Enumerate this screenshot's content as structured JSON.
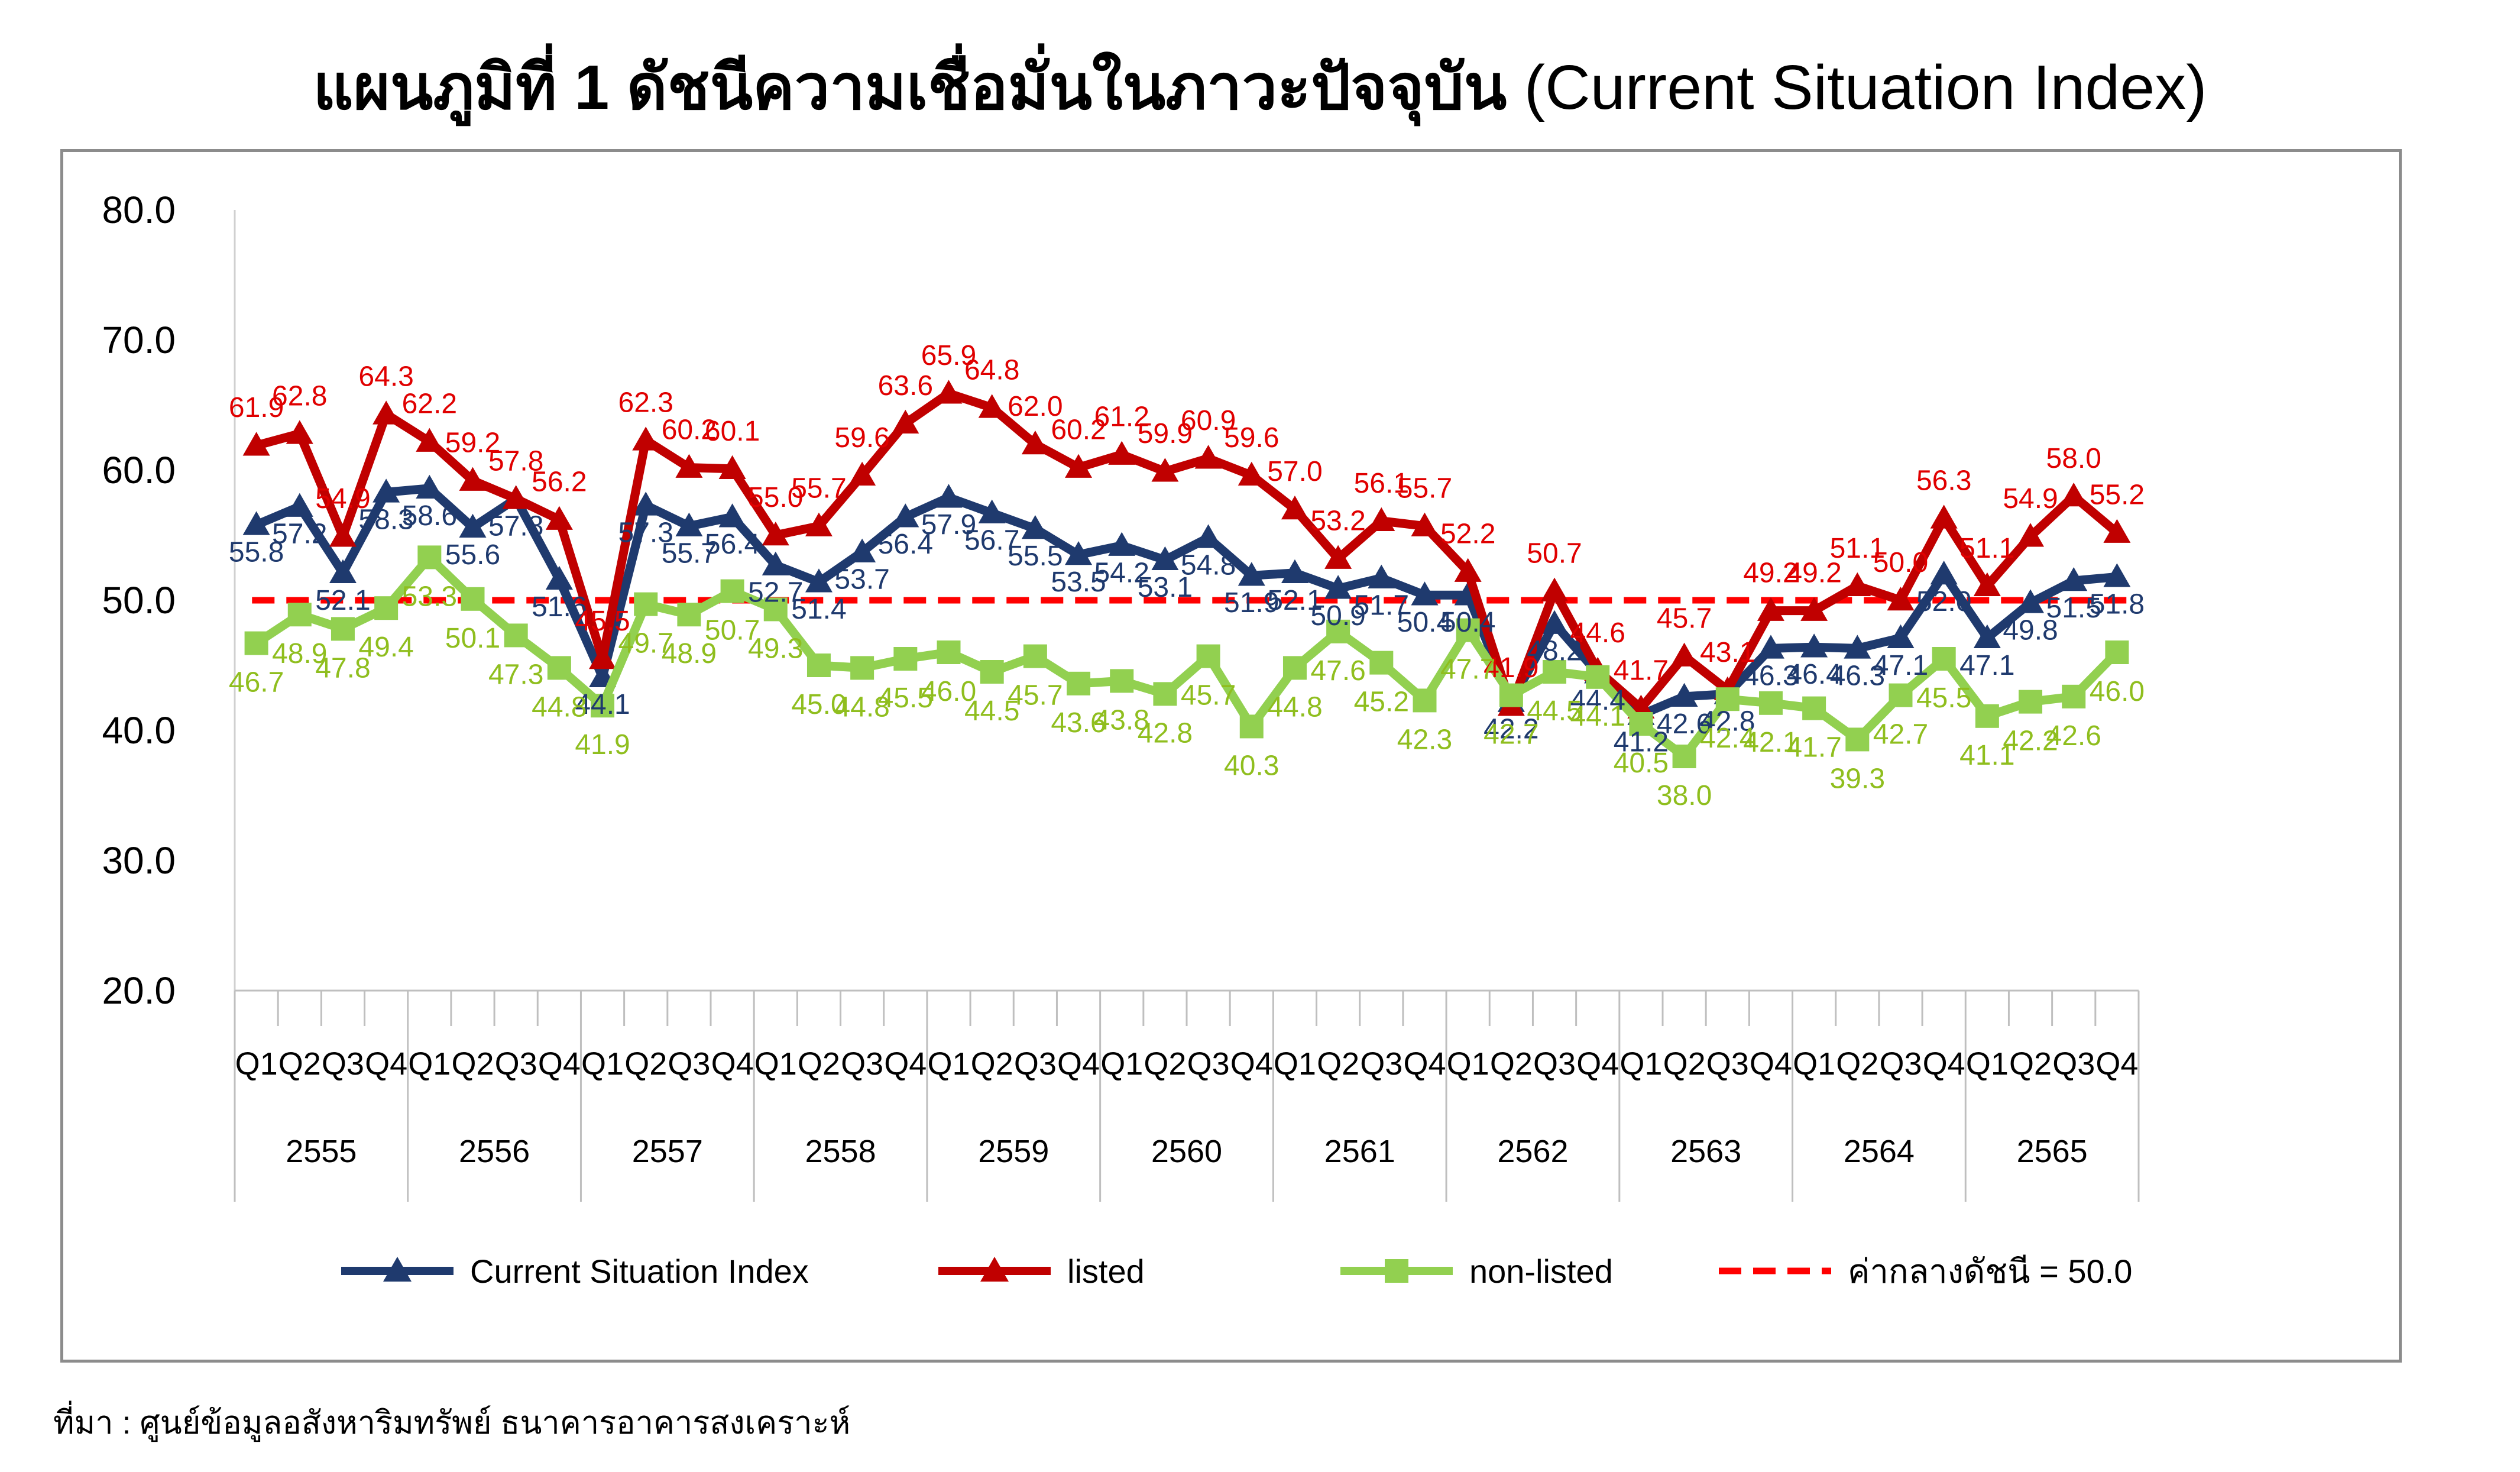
{
  "page": {
    "title_thai": "แผนภูมิที่ 1 ดัชนีความเชื่อมั่นในภาวะปัจจุบัน",
    "title_eng": "(Current Situation Index)",
    "source_note": "ที่มา : ศูนย์ข้อมูลอสังหาริมทรัพย์ ธนาคารอาคารสงเคราะห์"
  },
  "chart_data": {
    "type": "line",
    "ylim": [
      20,
      80
    ],
    "yticks": [
      "20.0",
      "30.0",
      "40.0",
      "50.0",
      "60.0",
      "70.0",
      "80.0"
    ],
    "quarters": [
      "Q1",
      "Q2",
      "Q3",
      "Q4",
      "Q1",
      "Q2",
      "Q3",
      "Q4",
      "Q1",
      "Q2",
      "Q3",
      "Q4",
      "Q1",
      "Q2",
      "Q3",
      "Q4",
      "Q1",
      "Q2",
      "Q3",
      "Q4",
      "Q1",
      "Q2",
      "Q3",
      "Q4",
      "Q1",
      "Q2",
      "Q3",
      "Q4",
      "Q1",
      "Q2",
      "Q3",
      "Q4",
      "Q1",
      "Q2",
      "Q3",
      "Q4",
      "Q1",
      "Q2",
      "Q3",
      "Q4",
      "Q1",
      "Q2",
      "Q3",
      "Q4"
    ],
    "years": [
      "2555",
      "2556",
      "2557",
      "2558",
      "2559",
      "2560",
      "2561",
      "2562",
      "2563",
      "2564",
      "2565"
    ],
    "series": [
      {
        "name": "Current Situation Index",
        "color": "#1f3a6e",
        "marker": "triangle",
        "label_color": "#1f3a6e",
        "values": [
          55.8,
          57.2,
          52.1,
          58.3,
          58.6,
          55.6,
          57.8,
          51.6,
          44.1,
          57.3,
          55.7,
          56.4,
          52.7,
          51.4,
          53.7,
          56.4,
          57.9,
          56.7,
          55.5,
          53.5,
          54.2,
          53.1,
          54.8,
          51.9,
          52.1,
          50.9,
          51.7,
          50.4,
          50.4,
          42.2,
          48.2,
          44.4,
          41.2,
          42.6,
          42.8,
          46.3,
          46.4,
          46.3,
          47.1,
          52.0,
          47.1,
          49.8,
          51.5,
          51.8
        ]
      },
      {
        "name": "listed",
        "color": "#c00000",
        "marker": "triangle",
        "label_color": "#e00000",
        "values": [
          61.9,
          62.8,
          54.9,
          64.3,
          62.2,
          59.2,
          57.8,
          56.2,
          45.5,
          62.3,
          60.2,
          60.1,
          55.0,
          55.7,
          59.6,
          63.6,
          65.9,
          64.8,
          62.0,
          60.2,
          61.2,
          59.9,
          60.9,
          59.6,
          57.0,
          53.2,
          56.1,
          55.7,
          52.2,
          41.9,
          50.7,
          44.6,
          41.7,
          45.7,
          43.1,
          49.2,
          49.2,
          51.1,
          50.0,
          56.3,
          51.1,
          54.9,
          58.0,
          55.2
        ]
      },
      {
        "name": "non-listed",
        "color": "#92d050",
        "marker": "square",
        "label_color": "#8fbe1e",
        "values": [
          46.7,
          48.9,
          47.8,
          49.4,
          53.3,
          50.1,
          47.3,
          44.8,
          41.9,
          49.7,
          48.9,
          50.7,
          49.3,
          45.0,
          44.8,
          45.5,
          46.0,
          44.5,
          45.7,
          43.6,
          43.8,
          42.8,
          45.7,
          40.3,
          44.8,
          47.6,
          45.2,
          42.3,
          47.7,
          42.7,
          44.5,
          44.1,
          40.5,
          38.0,
          42.4,
          42.1,
          41.7,
          39.3,
          42.7,
          45.5,
          41.1,
          42.2,
          42.6,
          46.0
        ]
      }
    ],
    "reference_line": {
      "name": "ค่ากลางดัชนี = 50.0",
      "value": 50.0,
      "color": "#ff0000"
    },
    "legend_position": "bottom"
  }
}
